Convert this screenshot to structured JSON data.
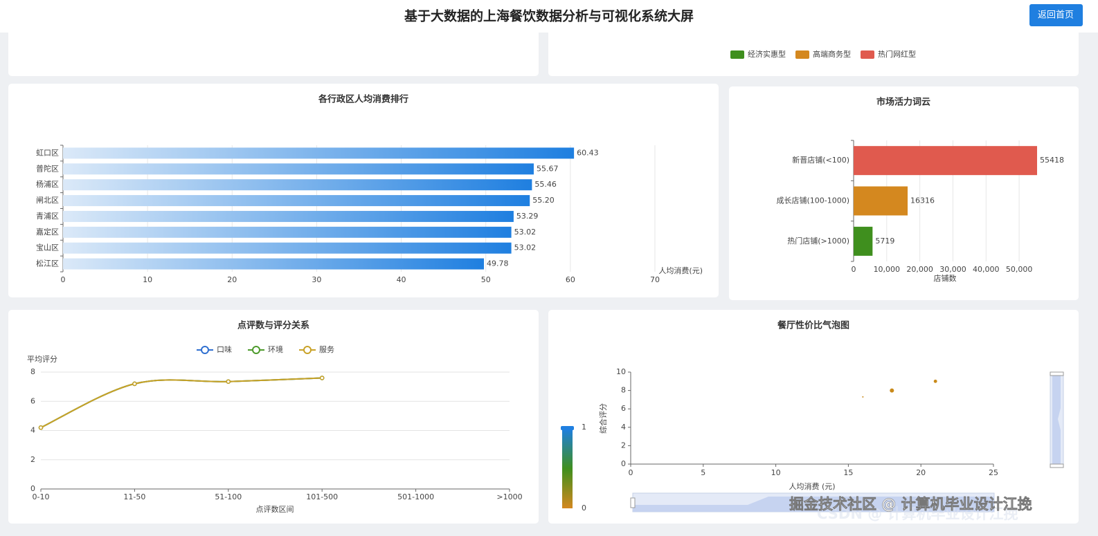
{
  "header": {
    "title": "基于大数据的上海餐饮数据分析与可视化系统大屏",
    "button": "返回首页"
  },
  "watermark": {
    "text": "掘金技术社区 @ 计算机毕业设计江挽",
    "shadow_text": "CSDN @ 计算机毕业设计江挽"
  },
  "chart_data": [
    {
      "type": "legend",
      "series": [
        {
          "name": "经济实惠型",
          "color": "#3f8f1e"
        },
        {
          "name": "高端商务型",
          "color": "#d4881f"
        },
        {
          "name": "热门网红型",
          "color": "#e05a4e"
        }
      ]
    },
    {
      "type": "bar",
      "horizontal": true,
      "title": "各行政区人均消费排行",
      "categories": [
        "虹口区",
        "普陀区",
        "杨浦区",
        "闸北区",
        "青浦区",
        "嘉定区",
        "宝山区",
        "松江区"
      ],
      "values": [
        60.43,
        55.67,
        55.46,
        55.2,
        53.29,
        53.02,
        53.02,
        49.78
      ],
      "value_labels": [
        "60.43",
        "55.67",
        "55.46",
        "55.20",
        "53.29",
        "53.02",
        "53.02",
        "49.78"
      ],
      "gradient": [
        "#dbe9f8",
        "#1f7fe0"
      ],
      "xlabel": "人均消费(元)",
      "xlim": [
        0,
        70
      ],
      "xticks": [
        0,
        10,
        20,
        30,
        40,
        50,
        60,
        70
      ],
      "grid": true
    },
    {
      "type": "bar",
      "horizontal": true,
      "title": "市场活力词云",
      "categories": [
        "新晋店铺(<100)",
        "成长店铺(100-1000)",
        "热门店铺(>1000)"
      ],
      "values": [
        55418,
        16316,
        5719
      ],
      "colors": [
        "#e05a4e",
        "#d4881f",
        "#3f8f1e"
      ],
      "xlabel": "店铺数",
      "xlim": [
        0,
        55418
      ],
      "xticks": [
        0,
        {
          "value": 10000,
          "label": "10,000"
        },
        {
          "value": 20000,
          "label": "20,000"
        },
        {
          "value": 30000,
          "label": "30,000"
        },
        {
          "value": 40000,
          "label": "40,000"
        },
        {
          "value": 50000,
          "label": "50,000"
        }
      ],
      "grid": true
    },
    {
      "type": "line",
      "smooth": true,
      "title": "点评数与评分关系",
      "categories": [
        "0-10",
        "11-50",
        "51-100",
        "101-500",
        "501-1000",
        ">1000"
      ],
      "series": [
        {
          "name": "口味",
          "color": "#2f6fd0",
          "values": [
            4.2,
            7.2,
            7.35,
            7.6,
            null,
            null
          ]
        },
        {
          "name": "环境",
          "color": "#4c9a2a",
          "values": [
            4.2,
            7.2,
            7.35,
            7.6,
            null,
            null
          ]
        },
        {
          "name": "服务",
          "color": "#c9a227",
          "values": [
            4.2,
            7.2,
            7.35,
            7.6,
            null,
            null
          ]
        }
      ],
      "xlabel": "点评数区间",
      "ylabel": "平均评分",
      "ylim": [
        0,
        8
      ],
      "yticks": [
        0,
        2,
        4,
        6,
        8
      ],
      "grid": true
    },
    {
      "type": "scatter",
      "title": "餐厅性价比气泡图",
      "x": [
        16,
        18,
        21
      ],
      "values": [
        7.3,
        8,
        9
      ],
      "size": [
        1,
        9,
        6
      ],
      "color": "#c98a1a",
      "xlabel": "人均消费 (元)",
      "ylabel": "综合评分",
      "xlim": [
        0,
        25
      ],
      "xticks": [
        0,
        5,
        10,
        15,
        20,
        25
      ],
      "ylim": [
        0,
        10
      ],
      "yticks": [
        0,
        2,
        4,
        6,
        8,
        10
      ],
      "visualmap": {
        "range": [
          0,
          1
        ]
      }
    }
  ]
}
